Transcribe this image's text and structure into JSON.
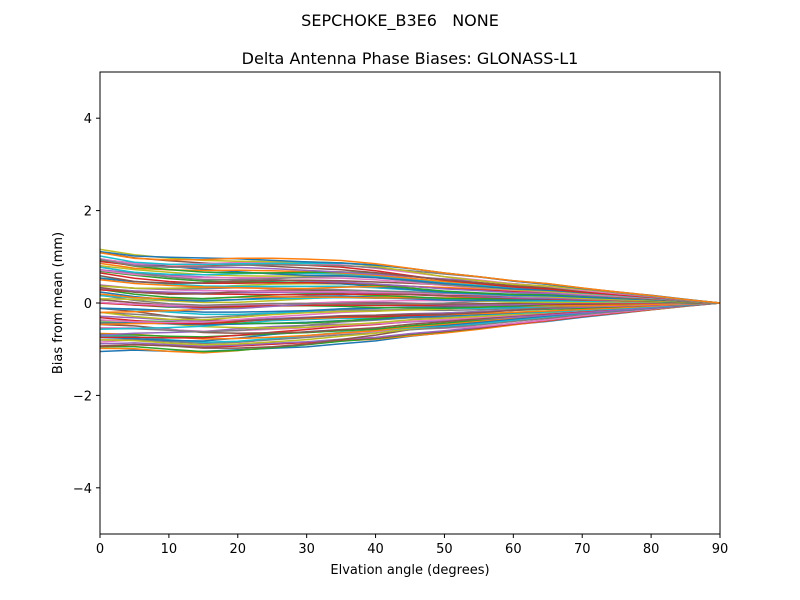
{
  "figure": {
    "suptitle": "SEPCHOKE_B3E6   NONE"
  },
  "chart_data": {
    "type": "line",
    "title": "Delta Antenna Phase Biases: GLONASS-L1",
    "xlabel": "Elvation angle (degrees)",
    "ylabel": "Bias from mean (mm)",
    "xlim": [
      0,
      90
    ],
    "ylim": [
      -5,
      5
    ],
    "xticks": [
      0,
      10,
      20,
      30,
      40,
      50,
      60,
      70,
      80,
      90
    ],
    "yticks": [
      -4,
      -2,
      0,
      2,
      4
    ],
    "ytick_labels": [
      "−4",
      "−2",
      "0",
      "2",
      "4"
    ],
    "grid": false,
    "legend": "none",
    "series_count": 72,
    "color_cycle": [
      "#1f77b4",
      "#ff7f0e",
      "#2ca02c",
      "#d62728",
      "#9467bd",
      "#8c564b",
      "#e377c2",
      "#7f7f7f",
      "#bcbd22",
      "#17becf"
    ],
    "x": [
      0,
      5,
      10,
      15,
      20,
      25,
      30,
      35,
      40,
      45,
      50,
      55,
      60,
      65,
      70,
      75,
      80,
      85,
      90
    ],
    "envelope": {
      "upper": [
        1.18,
        1.05,
        1.0,
        0.98,
        0.98,
        0.97,
        0.95,
        0.92,
        0.85,
        0.75,
        0.65,
        0.57,
        0.48,
        0.42,
        0.33,
        0.25,
        0.17,
        0.08,
        0.0
      ],
      "lower": [
        -1.05,
        -1.02,
        -1.05,
        -1.08,
        -1.05,
        -1.0,
        -0.95,
        -0.88,
        -0.82,
        -0.72,
        -0.65,
        -0.57,
        -0.48,
        -0.4,
        -0.31,
        -0.23,
        -0.15,
        -0.07,
        0.0
      ]
    }
  }
}
